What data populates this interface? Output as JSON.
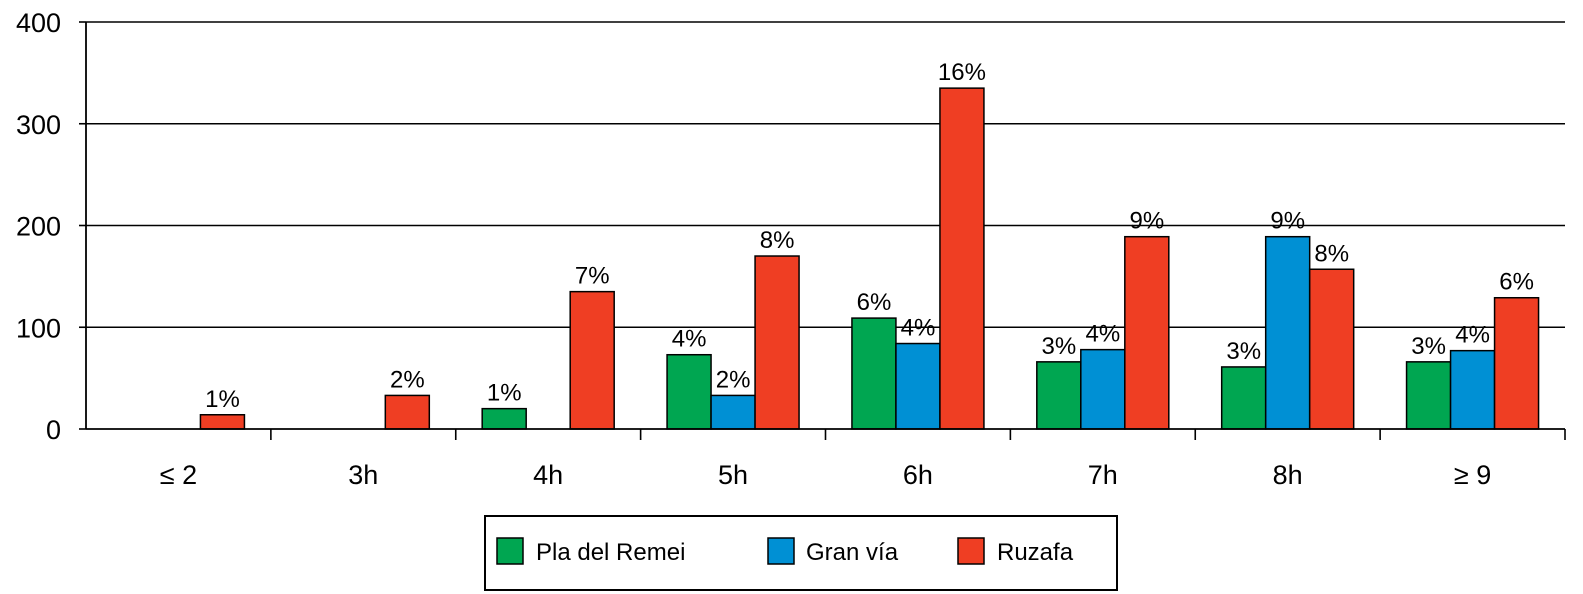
{
  "chart_data": {
    "type": "bar",
    "categories": [
      "≤ 2",
      "3h",
      "4h",
      "5h",
      "6h",
      "7h",
      "8h",
      "≥ 9"
    ],
    "ylim": [
      0,
      400
    ],
    "yticks": [
      0,
      100,
      200,
      300,
      400
    ],
    "grid": true,
    "legend_position": "bottom-center",
    "series": [
      {
        "name": "Pla del Remei",
        "color": "#00a651",
        "values": [
          null,
          null,
          20,
          73,
          109,
          66,
          61,
          66
        ],
        "labels": [
          "",
          "",
          "1%",
          "4%",
          "6%",
          "3%",
          "3%",
          "3%"
        ]
      },
      {
        "name": "Gran vía",
        "color": "#0090d4",
        "values": [
          null,
          null,
          null,
          33,
          84,
          78,
          189,
          77
        ],
        "labels": [
          "",
          "",
          "",
          "2%",
          "4%",
          "4%",
          "9%",
          "4%"
        ]
      },
      {
        "name": "Ruzafa",
        "color": "#ef3e23",
        "values": [
          14,
          33,
          135,
          170,
          335,
          189,
          157,
          129
        ],
        "labels": [
          "1%",
          "2%",
          "7%",
          "8%",
          "16%",
          "9%",
          "8%",
          "6%"
        ]
      }
    ]
  }
}
